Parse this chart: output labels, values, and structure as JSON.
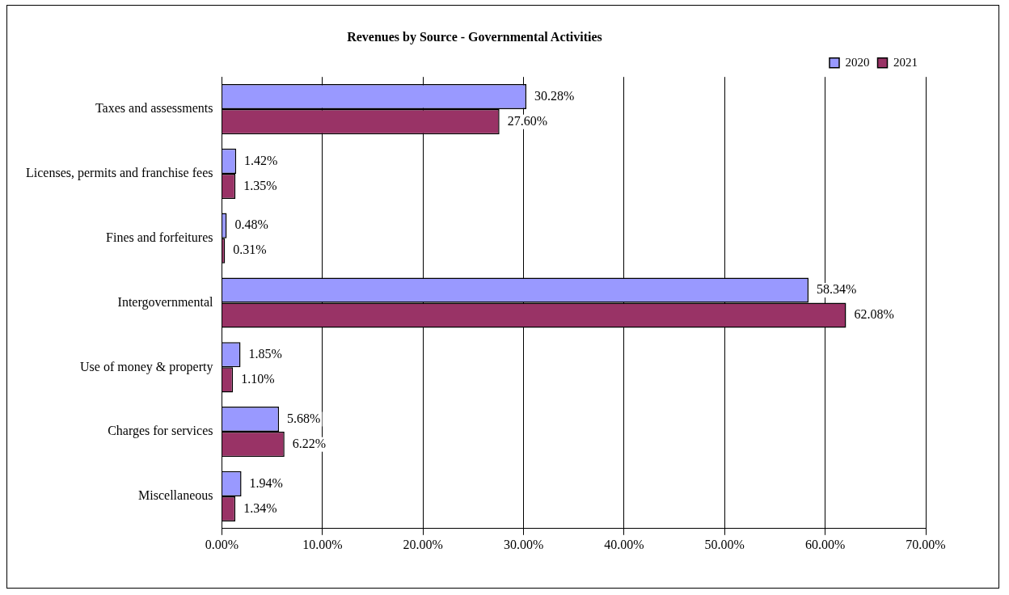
{
  "chart_data": {
    "type": "bar",
    "orientation": "horizontal",
    "title": "Revenues by Source - Governmental Activities",
    "categories": [
      "Taxes and assessments",
      "Licenses, permits and franchise fees",
      "Fines and forfeitures",
      "Intergovernmental",
      "Use of money & property",
      "Charges for services",
      "Miscellaneous"
    ],
    "series": [
      {
        "name": "2020",
        "color": "#9999ff",
        "values": [
          30.28,
          1.42,
          0.48,
          58.34,
          1.85,
          5.68,
          1.94
        ],
        "value_labels": [
          "30.28%",
          "1.42%",
          "0.48%",
          "58.34%",
          "1.85%",
          "5.68%",
          "1.94%"
        ]
      },
      {
        "name": "2021",
        "color": "#993366",
        "values": [
          27.6,
          1.35,
          0.31,
          62.08,
          1.1,
          6.22,
          1.34
        ],
        "value_labels": [
          "27.60%",
          "1.35%",
          "0.31%",
          "62.08%",
          "1.10%",
          "6.22%",
          "1.34%"
        ]
      }
    ],
    "xlim": [
      0,
      70
    ],
    "xticks": [
      {
        "value": 0,
        "label": "0.00%"
      },
      {
        "value": 10,
        "label": "10.00%"
      },
      {
        "value": 20,
        "label": "20.00%"
      },
      {
        "value": 30,
        "label": "30.00%"
      },
      {
        "value": 40,
        "label": "40.00%"
      },
      {
        "value": 50,
        "label": "50.00%"
      },
      {
        "value": 60,
        "label": "60.00%"
      },
      {
        "value": 70,
        "label": "70.00%"
      }
    ],
    "grid": "x",
    "legend": "top right"
  }
}
